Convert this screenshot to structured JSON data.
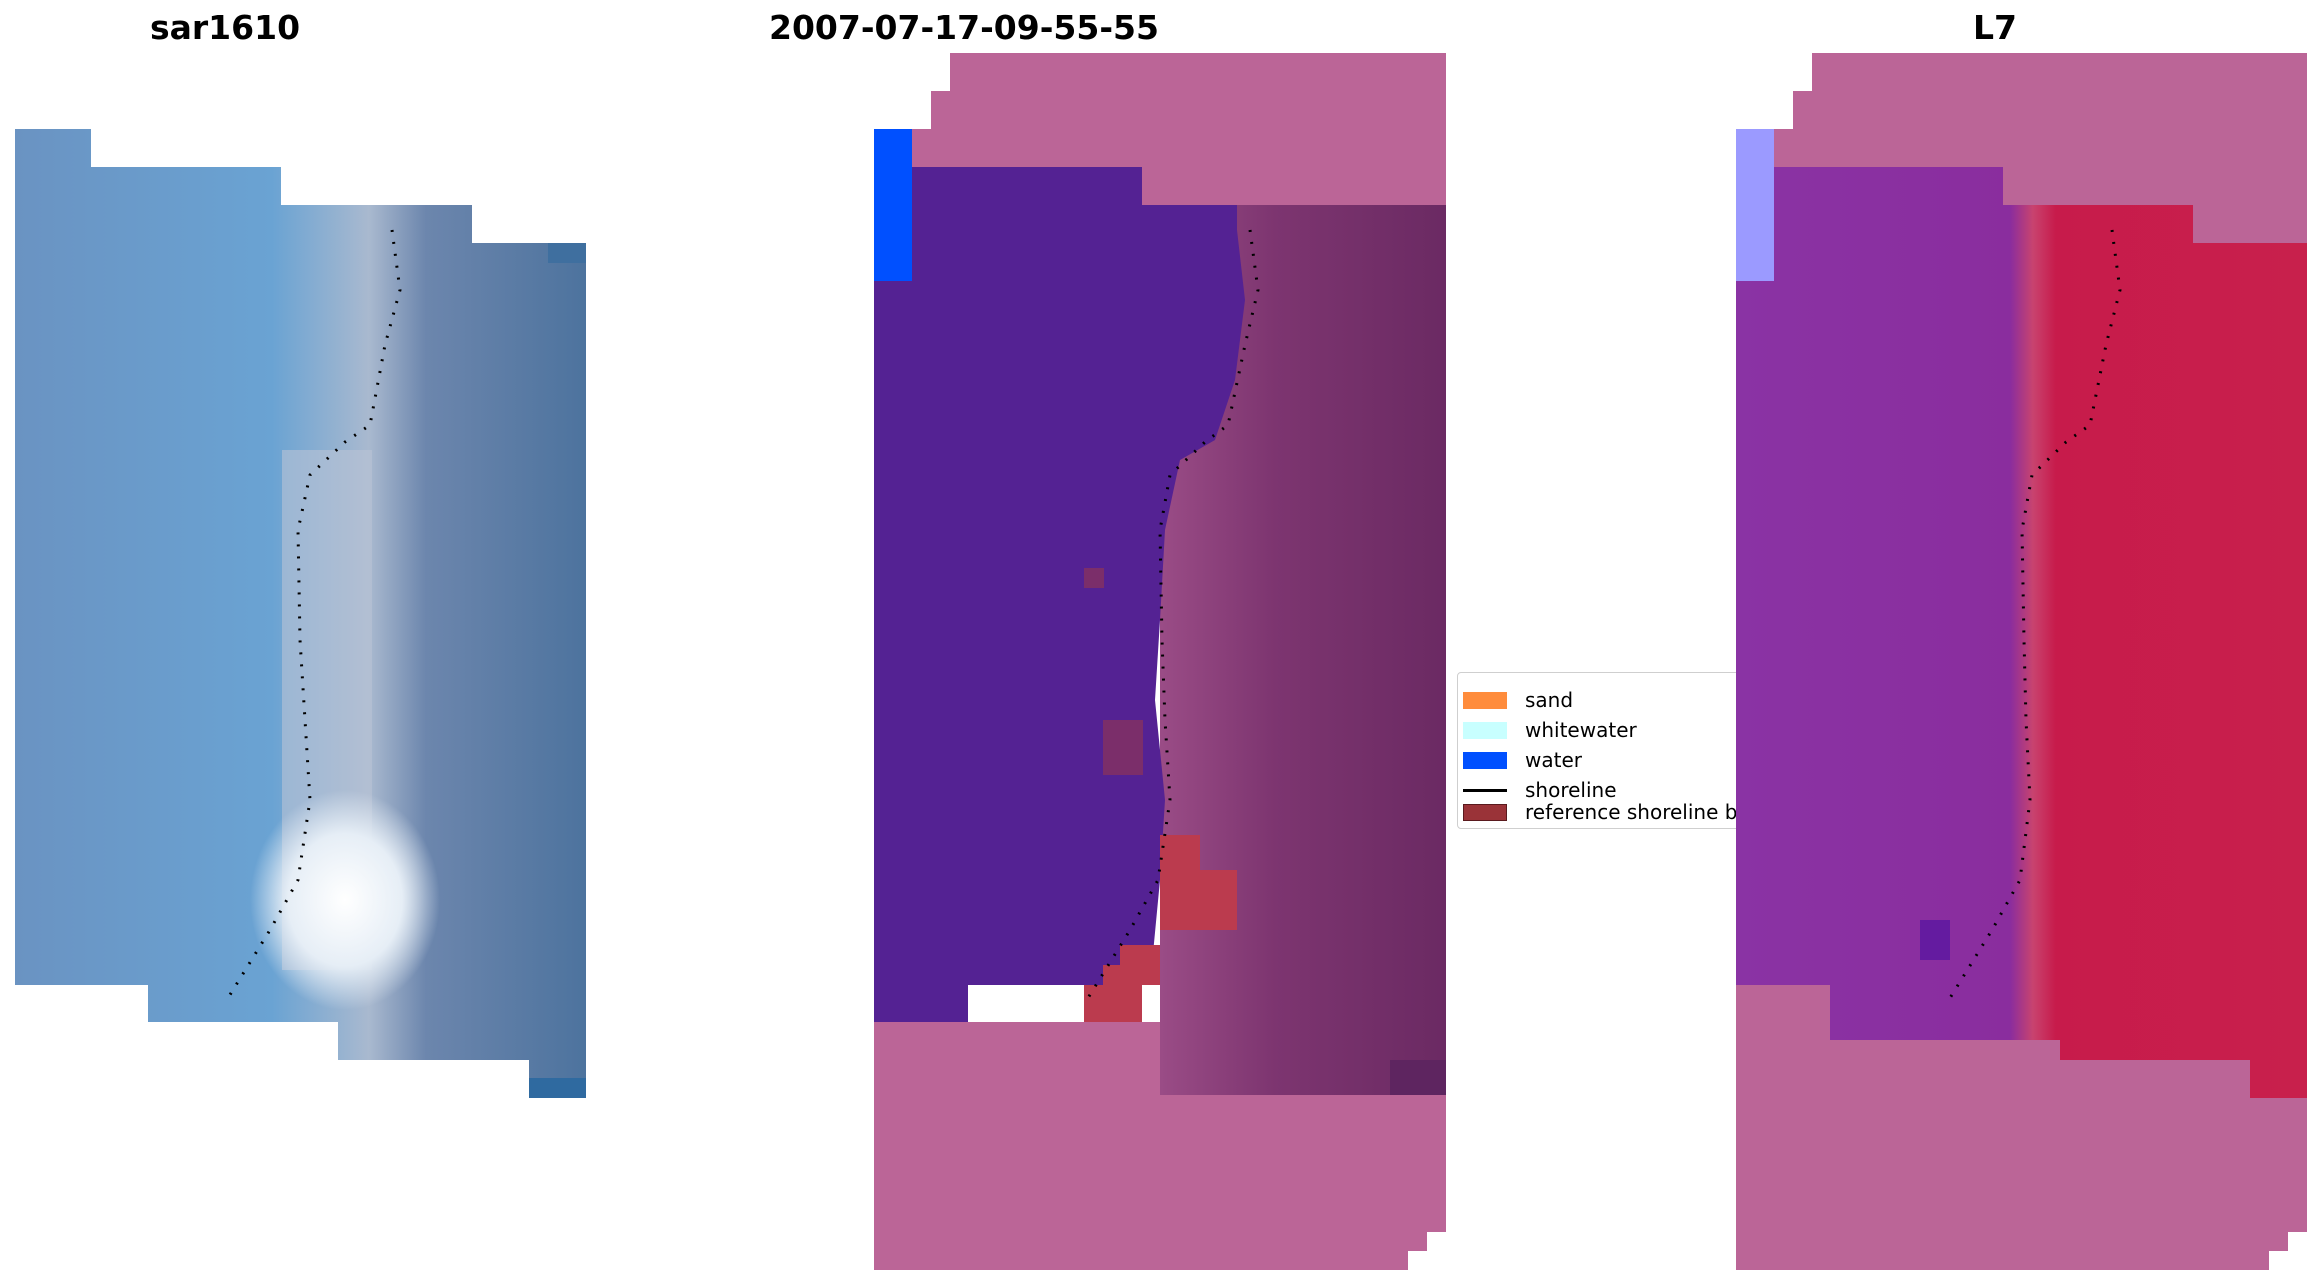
{
  "panels": [
    {
      "title": "sar1610"
    },
    {
      "title": "2007-07-17-09-55-55"
    },
    {
      "title": "L7"
    }
  ],
  "legend": {
    "items": [
      {
        "label": "sand",
        "color": "#ff8c3c",
        "kind": "patch"
      },
      {
        "label": "whitewater",
        "color": "#c8ffff",
        "kind": "patch"
      },
      {
        "label": "water",
        "color": "#0050ff",
        "kind": "patch"
      },
      {
        "label": "shoreline",
        "color": "#000000",
        "kind": "line"
      },
      {
        "label": "reference shoreline b",
        "color": "#9a3338",
        "kind": "patch"
      }
    ]
  },
  "colors": {
    "rgb_blue": "#6a9ac6",
    "rgb_blue_dark": "#3f6f9f",
    "rgb_gray": "#8595b2",
    "nodata_pink": "#bb6597",
    "class_water_dark": "#542293",
    "class_water": "#0050ff",
    "class_land": "#7b2e6a",
    "reference_buffer": "#bb3b4e",
    "index_purple": "#8a33a4",
    "index_red": "#c71b4b",
    "index_lightblue": "#9b9aff"
  }
}
